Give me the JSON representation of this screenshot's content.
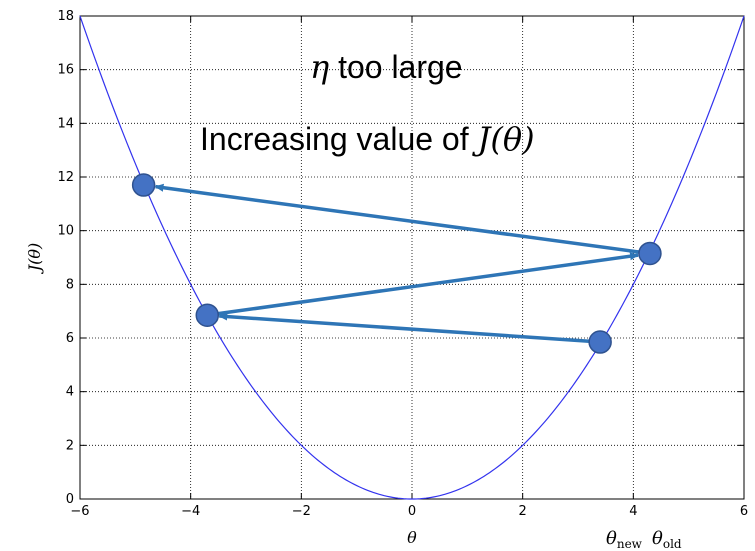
{
  "chart_data": {
    "type": "line",
    "title": "",
    "xlabel": "θ",
    "ylabel": "J(θ)",
    "xlim": [
      -6,
      6
    ],
    "ylim": [
      0,
      18
    ],
    "xticks": [
      -6,
      -4,
      -2,
      0,
      2,
      4,
      6
    ],
    "xtick_labels": [
      "−6",
      "−4",
      "−2",
      "0",
      "2",
      "4",
      "6"
    ],
    "yticks": [
      0,
      2,
      4,
      6,
      8,
      10,
      12,
      14,
      16,
      18
    ],
    "ytick_labels": [
      "0",
      "2",
      "4",
      "6",
      "8",
      "10",
      "12",
      "14",
      "16",
      "18"
    ],
    "grid": true,
    "series": [
      {
        "function": "J(θ) = θ²/2",
        "color": "#3333ee"
      }
    ],
    "points": [
      {
        "x": 3.4,
        "y": 5.85
      },
      {
        "x": -3.7,
        "y": 6.85
      },
      {
        "x": 4.3,
        "y": 9.15
      },
      {
        "x": -4.85,
        "y": 11.7
      }
    ],
    "arrows": [
      {
        "from": [
          3.4,
          5.85
        ],
        "to": [
          -3.7,
          6.85
        ]
      },
      {
        "from": [
          -3.7,
          6.85
        ],
        "to": [
          4.3,
          9.15
        ]
      },
      {
        "from": [
          4.3,
          9.15
        ],
        "to": [
          -4.85,
          11.7
        ]
      }
    ],
    "marker_color": "#4472c4",
    "arrow_color": "#2e75b6",
    "annotations": {
      "eta_symbol": "η",
      "eta_text": " too large",
      "line2_text": "Increasing value of ",
      "line2_math": "J(θ)",
      "theta_new": "θ",
      "theta_new_sub": "new",
      "theta_old": "θ",
      "theta_old_sub": "old"
    }
  }
}
